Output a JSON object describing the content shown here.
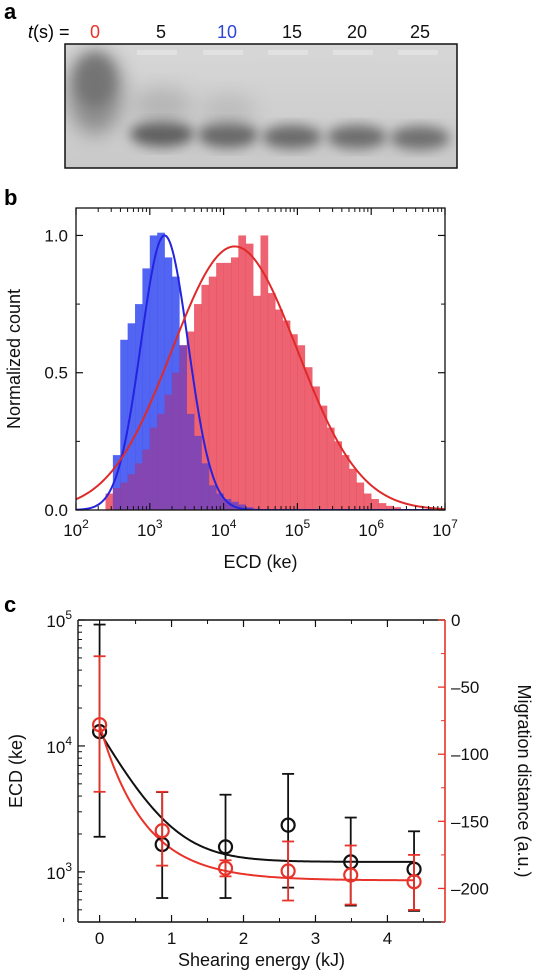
{
  "panels": {
    "a": "a",
    "b": "b",
    "c": "c"
  },
  "gel": {
    "prefix_t": "t",
    "prefix_rest": "(s) =",
    "lanes": [
      {
        "label": "0",
        "color": "#e8332a"
      },
      {
        "label": "5",
        "color": "#111111"
      },
      {
        "label": "10",
        "color": "#2f46d6"
      },
      {
        "label": "15",
        "color": "#111111"
      },
      {
        "label": "20",
        "color": "#111111"
      },
      {
        "label": "25",
        "color": "#111111"
      }
    ]
  },
  "chart_data": [
    {
      "type": "bar",
      "panel": "b",
      "xlabel": "ECD (ke)",
      "ylabel": "Normalized count",
      "x_scale": "log",
      "xlim": [
        100,
        10000000
      ],
      "ylim": [
        0,
        1.1
      ],
      "x_tick_labels": [
        {
          "base": "10",
          "exp": "2"
        },
        {
          "base": "10",
          "exp": "3"
        },
        {
          "base": "10",
          "exp": "4"
        },
        {
          "base": "10",
          "exp": "5"
        },
        {
          "base": "10",
          "exp": "6"
        },
        {
          "base": "10",
          "exp": "7"
        }
      ],
      "y_tick_labels": [
        "0.0",
        "0.5",
        "1.0"
      ],
      "y_ticks": [
        0,
        0.5,
        1.0
      ],
      "series": [
        {
          "color": "#3a4ef0",
          "bin_edges": [
            316,
            398,
            501,
            631,
            794,
            1000,
            1259,
            1585,
            1995,
            2512,
            3162,
            3981,
            5012,
            6310,
            7943,
            10000,
            12589,
            15849,
            19953,
            25119
          ],
          "values": [
            0.2,
            0.62,
            0.68,
            0.75,
            0.88,
            1.0,
            1.01,
            0.92,
            0.85,
            0.6,
            0.35,
            0.27,
            0.17,
            0.09,
            0.06,
            0.04,
            0.03,
            0.02,
            0.01
          ],
          "fit_mu_log10": 3.2,
          "fit_sigma_log10": 0.32,
          "fit_peak": 1.0
        },
        {
          "color": "#f25a5a",
          "bin_edges": [
            251,
            316,
            398,
            501,
            631,
            794,
            1000,
            1259,
            1585,
            1995,
            2512,
            3162,
            3981,
            5012,
            6310,
            7943,
            10000,
            12589,
            15849,
            19953,
            25119,
            31623,
            39811,
            50119,
            63096,
            79433,
            100000,
            125893,
            158489,
            199526,
            251189,
            316228,
            398107,
            501187,
            630957,
            794328,
            1000000,
            1258925,
            1584893,
            1995262,
            2511886
          ],
          "values": [
            0.06,
            0.08,
            0.1,
            0.13,
            0.17,
            0.22,
            0.3,
            0.35,
            0.42,
            0.5,
            0.6,
            0.65,
            0.75,
            0.82,
            0.85,
            0.9,
            0.9,
            0.92,
            1.0,
            0.97,
            0.78,
            1.0,
            0.79,
            0.73,
            0.69,
            0.64,
            0.6,
            0.52,
            0.45,
            0.38,
            0.3,
            0.25,
            0.2,
            0.15,
            0.1,
            0.06,
            0.04,
            0.025,
            0.015,
            0.01
          ],
          "fit_mu_log10": 4.15,
          "fit_sigma_log10": 0.85,
          "fit_peak": 0.96
        }
      ]
    },
    {
      "type": "scatter",
      "panel": "c",
      "xlabel": "Shearing energy (kJ)",
      "ylabel_left": "ECD (ke)",
      "ylabel_right": "Migration distance (a.u.)",
      "xlim": [
        -0.3,
        4.8
      ],
      "x_ticks": [
        0,
        1,
        2,
        3,
        4
      ],
      "y_left_scale": "log",
      "y_left_lim": [
        400,
        100000
      ],
      "y_left_tick_labels": [
        {
          "value": 1000,
          "base": "10",
          "exp": "3"
        },
        {
          "value": 10000,
          "base": "10",
          "exp": "4"
        },
        {
          "value": 100000,
          "base": "10",
          "exp": "5"
        }
      ],
      "y_right_lim": [
        -225,
        0
      ],
      "y_right_ticks": [
        0,
        -50,
        -100,
        -150,
        -200
      ],
      "y_right_tick_labels": [
        "0",
        "–50",
        "–100",
        "–150",
        "–200"
      ],
      "series": [
        {
          "axis": "left",
          "color": "#111111",
          "x": [
            0,
            0.87,
            1.75,
            2.62,
            3.49,
            4.37
          ],
          "y": [
            13000,
            1650,
            1580,
            2350,
            1200,
            1050
          ],
          "y_err_low": [
            1900,
            620,
            620,
            750,
            540,
            490
          ],
          "y_err_high": [
            92000,
            4300,
            4100,
            6000,
            2700,
            2100
          ],
          "fit": {
            "a": 11800,
            "k": 2.4,
            "c": 1200
          }
        },
        {
          "axis": "right",
          "color": "#e8332a",
          "x": [
            0,
            0.87,
            1.75,
            2.62,
            3.49,
            4.37
          ],
          "y": [
            -78,
            -157,
            -185,
            -187,
            -190,
            -195
          ],
          "y_err_low": [
            -128,
            -183,
            -191,
            -209,
            -212,
            -216
          ],
          "y_err_high": [
            -27,
            -128,
            -179,
            -165,
            -168,
            -175
          ],
          "fit": {
            "a": 116,
            "k": 1.6,
            "c": -194
          }
        }
      ]
    }
  ]
}
